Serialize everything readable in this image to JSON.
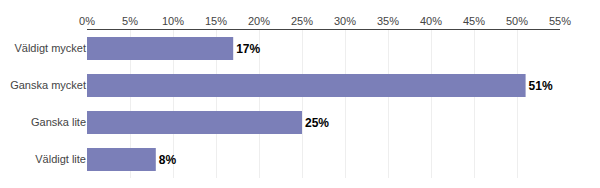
{
  "chart_data": {
    "type": "bar",
    "orientation": "horizontal",
    "categories": [
      "Väldigt mycket",
      "Ganska mycket",
      "Ganska lite",
      "Väldigt lite"
    ],
    "values": [
      17,
      51,
      25,
      8
    ],
    "value_labels": [
      "17%",
      "51%",
      "25%",
      "8%"
    ],
    "data_labels": true,
    "color": "#7b7fb8",
    "xlim": [
      0,
      55
    ],
    "xticks": [
      {
        "value": 0,
        "label": "0%"
      },
      {
        "value": 5,
        "label": "5%"
      },
      {
        "value": 10,
        "label": "10%"
      },
      {
        "value": 15,
        "label": "15%"
      },
      {
        "value": 20,
        "label": "20%"
      },
      {
        "value": 25,
        "label": "25%"
      },
      {
        "value": 30,
        "label": "30%"
      },
      {
        "value": 35,
        "label": "35%"
      },
      {
        "value": 40,
        "label": "40%"
      },
      {
        "value": 45,
        "label": "45%"
      },
      {
        "value": 50,
        "label": "50%"
      },
      {
        "value": 55,
        "label": "55%"
      }
    ],
    "grid": true
  }
}
